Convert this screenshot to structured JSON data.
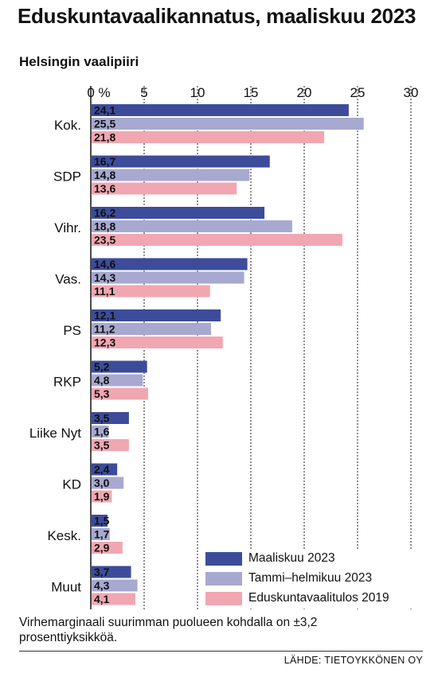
{
  "title": "Eduskuntavaalikannatus, maaliskuu 2023",
  "subtitle": "Helsingin vaalipiiri",
  "note": "Virhemarginaali suurimman puolueen kohdalla on ±3,2 prosenttiyksikköä.",
  "source": "LÄHDE: TIETOYKKÖNEN OY",
  "colors": {
    "Maaliskuu 2023": "#3d4c9a",
    "Tammi–helmikuu 2023": "#a7a9d0",
    "Eduskuntavaalitulos 2019": "#f1a7b1"
  },
  "chart_data": {
    "type": "bar",
    "orientation": "horizontal",
    "categories": [
      "Kok.",
      "SDP",
      "Vihr.",
      "Vas.",
      "PS",
      "RKP",
      "Liike Nyt",
      "KD",
      "Kesk.",
      "Muut"
    ],
    "series": [
      {
        "name": "Maaliskuu 2023",
        "values": [
          24.1,
          16.7,
          16.2,
          14.6,
          12.1,
          5.2,
          3.5,
          2.4,
          1.5,
          3.7
        ],
        "labels": [
          "24,1",
          "16,7",
          "16,2",
          "14,6",
          "12,1",
          "5,2",
          "3,5",
          "2,4",
          "1,5",
          "3,7"
        ]
      },
      {
        "name": "Tammi–helmikuu 2023",
        "values": [
          25.5,
          14.8,
          18.8,
          14.3,
          11.2,
          4.8,
          1.6,
          3.0,
          1.7,
          4.3
        ],
        "labels": [
          "25,5",
          "14,8",
          "18,8",
          "14,3",
          "11,2",
          "4,8",
          "1,6",
          "3,0",
          "1,7",
          "4,3"
        ]
      },
      {
        "name": "Eduskuntavaalitulos 2019",
        "values": [
          21.8,
          13.6,
          23.5,
          11.1,
          12.3,
          5.3,
          3.5,
          1.9,
          2.9,
          4.1
        ],
        "labels": [
          "21,8",
          "13,6",
          "23,5",
          "11,1",
          "12,3",
          "5,3",
          "3,5",
          "1,9",
          "2,9",
          "4,1"
        ]
      }
    ],
    "xticks": [
      0,
      5,
      10,
      15,
      20,
      25,
      30
    ],
    "xtick_labels": [
      "0 %",
      "5",
      "10",
      "15",
      "20",
      "25",
      "30"
    ],
    "xlim": [
      0,
      30
    ],
    "grid": true,
    "legend_position": "bottom-right"
  }
}
